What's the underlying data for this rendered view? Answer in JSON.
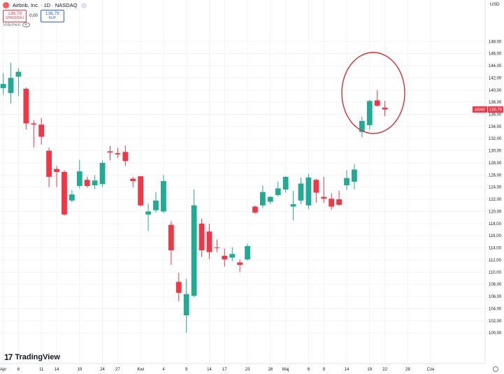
{
  "header": {
    "title": "Airbnb, Inc. · 1D · NASDAQ",
    "currency": "USD",
    "sell_value": "136,79",
    "sell_label": "SPRZEDAJ",
    "spread": "0,00",
    "buy_value": "136,79",
    "buy_label": "KUP",
    "volume_label": "Volumen"
  },
  "branding": {
    "name": "TradingView"
  },
  "colors": {
    "up": "#22ab94",
    "down": "#f23645",
    "circle": "#d32f2f",
    "price_tag": "#f23645"
  },
  "chart_data": {
    "type": "candlestick",
    "symbol": "ABNB",
    "last_price": 136.79,
    "ylim": [
      98,
      148
    ],
    "y_ticks": [
      100,
      102,
      104,
      106,
      108,
      110,
      112,
      114,
      116,
      118,
      120,
      122,
      124,
      126,
      128,
      130,
      132,
      134,
      136,
      138,
      140,
      142,
      144,
      146,
      148
    ],
    "x_labels": [
      {
        "label": "Apr",
        "i": 0
      },
      {
        "label": "6",
        "i": 2
      },
      {
        "label": "11",
        "i": 5
      },
      {
        "label": "14",
        "i": 7
      },
      {
        "label": "19",
        "i": 10
      },
      {
        "label": "24",
        "i": 13
      },
      {
        "label": "27",
        "i": 15
      },
      {
        "label": "Kwi",
        "i": 18
      },
      {
        "label": "4",
        "i": 21
      },
      {
        "label": "9",
        "i": 24
      },
      {
        "label": "14",
        "i": 27
      },
      {
        "label": "17",
        "i": 29
      },
      {
        "label": "23",
        "i": 32
      },
      {
        "label": "28",
        "i": 35
      },
      {
        "label": "Maj",
        "i": 37
      },
      {
        "label": "6",
        "i": 40
      },
      {
        "label": "9",
        "i": 42
      },
      {
        "label": "14",
        "i": 45
      },
      {
        "label": "19",
        "i": 48
      },
      {
        "label": "22",
        "i": 50
      },
      {
        "label": "28",
        "i": 53
      },
      {
        "label": "Cze",
        "i": 56
      }
    ],
    "candles": [
      {
        "i": 0,
        "o": 140.3,
        "h": 142.8,
        "l": 139.2,
        "c": 141.0
      },
      {
        "i": 1,
        "o": 139.5,
        "h": 144.5,
        "l": 137.8,
        "c": 142.0
      },
      {
        "i": 2,
        "o": 142.2,
        "h": 143.6,
        "l": 139.0,
        "c": 143.0
      },
      {
        "i": 3,
        "o": 140.2,
        "h": 140.4,
        "l": 133.5,
        "c": 134.5
      },
      {
        "i": 4,
        "o": 134.5,
        "h": 135.0,
        "l": 130.5,
        "c": 134.3
      },
      {
        "i": 5,
        "o": 134.3,
        "h": 135.4,
        "l": 131.0,
        "c": 132.3
      },
      {
        "i": 6,
        "o": 130.0,
        "h": 130.5,
        "l": 124.0,
        "c": 125.7
      },
      {
        "i": 7,
        "o": 127.0,
        "h": 127.5,
        "l": 124.0,
        "c": 126.5
      },
      {
        "i": 8,
        "o": 126.5,
        "h": 126.8,
        "l": 119.3,
        "c": 119.5
      },
      {
        "i": 9,
        "o": 121.8,
        "h": 123.5,
        "l": 121.5,
        "c": 122.8
      },
      {
        "i": 10,
        "o": 124.2,
        "h": 128.5,
        "l": 123.8,
        "c": 126.6
      },
      {
        "i": 11,
        "o": 125.2,
        "h": 125.7,
        "l": 123.9,
        "c": 124.2
      },
      {
        "i": 12,
        "o": 124.3,
        "h": 126.0,
        "l": 123.7,
        "c": 125.1
      },
      {
        "i": 13,
        "o": 124.5,
        "h": 128.4,
        "l": 124.0,
        "c": 128.0
      },
      {
        "i": 14,
        "o": 129.9,
        "h": 130.8,
        "l": 128.4,
        "c": 129.7
      },
      {
        "i": 15,
        "o": 129.6,
        "h": 130.5,
        "l": 128.8,
        "c": 129.4
      },
      {
        "i": 16,
        "o": 129.8,
        "h": 130.9,
        "l": 127.5,
        "c": 128.3
      },
      {
        "i": 17,
        "o": 125.4,
        "h": 125.7,
        "l": 124.0,
        "c": 125.0
      },
      {
        "i": 18,
        "o": 125.8,
        "h": 125.8,
        "l": 120.8,
        "c": 121.0
      },
      {
        "i": 19,
        "o": 119.5,
        "h": 121.3,
        "l": 116.8,
        "c": 120.0
      },
      {
        "i": 20,
        "o": 120.2,
        "h": 123.2,
        "l": 119.8,
        "c": 121.8
      },
      {
        "i": 21,
        "o": 120.0,
        "h": 126.0,
        "l": 119.7,
        "c": 125.0
      },
      {
        "i": 22,
        "o": 117.8,
        "h": 118.4,
        "l": 111.2,
        "c": 113.6
      },
      {
        "i": 23,
        "o": 108.4,
        "h": 109.9,
        "l": 105.2,
        "c": 106.6
      },
      {
        "i": 24,
        "o": 102.9,
        "h": 108.9,
        "l": 100.0,
        "c": 106.4
      },
      {
        "i": 25,
        "o": 106.1,
        "h": 123.6,
        "l": 105.9,
        "c": 121.0
      },
      {
        "i": 26,
        "o": 118.0,
        "h": 118.8,
        "l": 112.5,
        "c": 113.6
      },
      {
        "i": 27,
        "o": 116.7,
        "h": 118.0,
        "l": 112.1,
        "c": 113.3
      },
      {
        "i": 28,
        "o": 114.1,
        "h": 115.4,
        "l": 113.3,
        "c": 114.0
      },
      {
        "i": 29,
        "o": 112.7,
        "h": 113.9,
        "l": 110.9,
        "c": 112.1
      },
      {
        "i": 30,
        "o": 112.4,
        "h": 114.1,
        "l": 111.8,
        "c": 113.0
      },
      {
        "i": 31,
        "o": 111.6,
        "h": 112.1,
        "l": 110.0,
        "c": 111.2
      },
      {
        "i": 32,
        "o": 112.1,
        "h": 114.7,
        "l": 111.9,
        "c": 114.3
      },
      {
        "i": 33,
        "o": 120.8,
        "h": 121.0,
        "l": 119.6,
        "c": 119.8
      },
      {
        "i": 34,
        "o": 121.0,
        "h": 124.3,
        "l": 120.6,
        "c": 123.2
      },
      {
        "i": 35,
        "o": 121.6,
        "h": 122.5,
        "l": 121.2,
        "c": 122.4
      },
      {
        "i": 36,
        "o": 122.7,
        "h": 124.9,
        "l": 122.5,
        "c": 123.8
      },
      {
        "i": 37,
        "o": 123.6,
        "h": 125.8,
        "l": 123.1,
        "c": 125.7
      },
      {
        "i": 38,
        "o": 120.8,
        "h": 123.4,
        "l": 118.5,
        "c": 121.2
      },
      {
        "i": 39,
        "o": 121.8,
        "h": 125.6,
        "l": 121.2,
        "c": 124.6
      },
      {
        "i": 40,
        "o": 121.0,
        "h": 126.2,
        "l": 120.4,
        "c": 125.6
      },
      {
        "i": 41,
        "o": 125.2,
        "h": 125.4,
        "l": 121.5,
        "c": 123.1
      },
      {
        "i": 42,
        "o": 122.4,
        "h": 125.7,
        "l": 121.4,
        "c": 122.1
      },
      {
        "i": 43,
        "o": 122.1,
        "h": 123.0,
        "l": 120.3,
        "c": 120.8
      },
      {
        "i": 44,
        "o": 122.0,
        "h": 123.4,
        "l": 120.9,
        "c": 121.1
      },
      {
        "i": 45,
        "o": 124.3,
        "h": 126.8,
        "l": 123.5,
        "c": 125.5
      },
      {
        "i": 46,
        "o": 124.9,
        "h": 127.8,
        "l": 123.6,
        "c": 126.9
      },
      {
        "i": 47,
        "o": 133.1,
        "h": 135.6,
        "l": 132.2,
        "c": 134.9
      },
      {
        "i": 48,
        "o": 134.2,
        "h": 138.4,
        "l": 133.5,
        "c": 138.2
      },
      {
        "i": 49,
        "o": 138.3,
        "h": 140.0,
        "l": 137.3,
        "c": 137.4
      },
      {
        "i": 50,
        "o": 137.1,
        "h": 138.2,
        "l": 135.7,
        "c": 136.79
      }
    ]
  }
}
